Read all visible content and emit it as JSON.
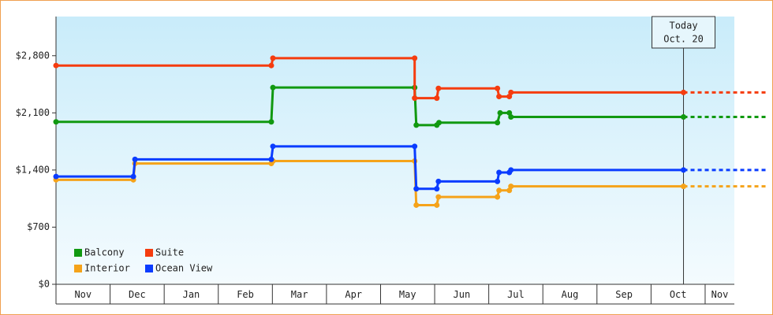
{
  "chart_data": {
    "type": "step-line",
    "categories": [
      "Nov",
      "Dec",
      "Jan",
      "Feb",
      "Mar",
      "Apr",
      "May",
      "Jun",
      "Jul",
      "Aug",
      "Sep",
      "Oct",
      "Nov"
    ],
    "xlim": [
      0,
      12.54
    ],
    "ylim": [
      0,
      3280
    ],
    "yticks": [
      {
        "value": 0,
        "label": "$0"
      },
      {
        "value": 700,
        "label": "$700"
      },
      {
        "value": 1400,
        "label": "$1,400"
      },
      {
        "value": 2100,
        "label": "$2,100"
      },
      {
        "value": 2800,
        "label": "$2,800"
      }
    ],
    "legend": "bottom-left",
    "annotation": {
      "x": 11.6,
      "lines": [
        "Today",
        "Oct. 20"
      ]
    },
    "series": [
      {
        "name": "Balcony",
        "color": "#119911",
        "x": [
          0,
          3.98,
          4.01,
          6.63,
          6.66,
          7.04,
          7.08,
          8.16,
          8.21,
          8.38,
          8.41,
          11.6
        ],
        "values": [
          1990,
          1990,
          2410,
          2410,
          1950,
          1950,
          1980,
          1980,
          2100,
          2100,
          2050,
          2050
        ]
      },
      {
        "name": "Suite",
        "color": "#f53c0f",
        "x": [
          0,
          3.98,
          4.01,
          6.63,
          6.63,
          7.04,
          7.07,
          8.16,
          8.19,
          8.38,
          8.41,
          11.6
        ],
        "values": [
          2680,
          2680,
          2770,
          2770,
          2280,
          2280,
          2400,
          2400,
          2300,
          2300,
          2350,
          2350
        ]
      },
      {
        "name": "Interior",
        "color": "#f5a31a",
        "x": [
          0,
          1.43,
          1.46,
          3.98,
          4.01,
          6.63,
          6.66,
          7.04,
          7.07,
          8.16,
          8.19,
          8.38,
          8.41,
          11.6
        ],
        "values": [
          1280,
          1280,
          1480,
          1480,
          1510,
          1510,
          970,
          970,
          1070,
          1070,
          1150,
          1150,
          1200,
          1200
        ]
      },
      {
        "name": "Ocean View",
        "color": "#0a3cff",
        "x": [
          0,
          1.43,
          1.46,
          3.98,
          4.01,
          6.63,
          6.66,
          7.04,
          7.07,
          8.16,
          8.19,
          8.38,
          8.41,
          11.6
        ],
        "values": [
          1320,
          1320,
          1530,
          1530,
          1690,
          1690,
          1170,
          1170,
          1260,
          1260,
          1370,
          1370,
          1400,
          1400
        ]
      }
    ]
  }
}
